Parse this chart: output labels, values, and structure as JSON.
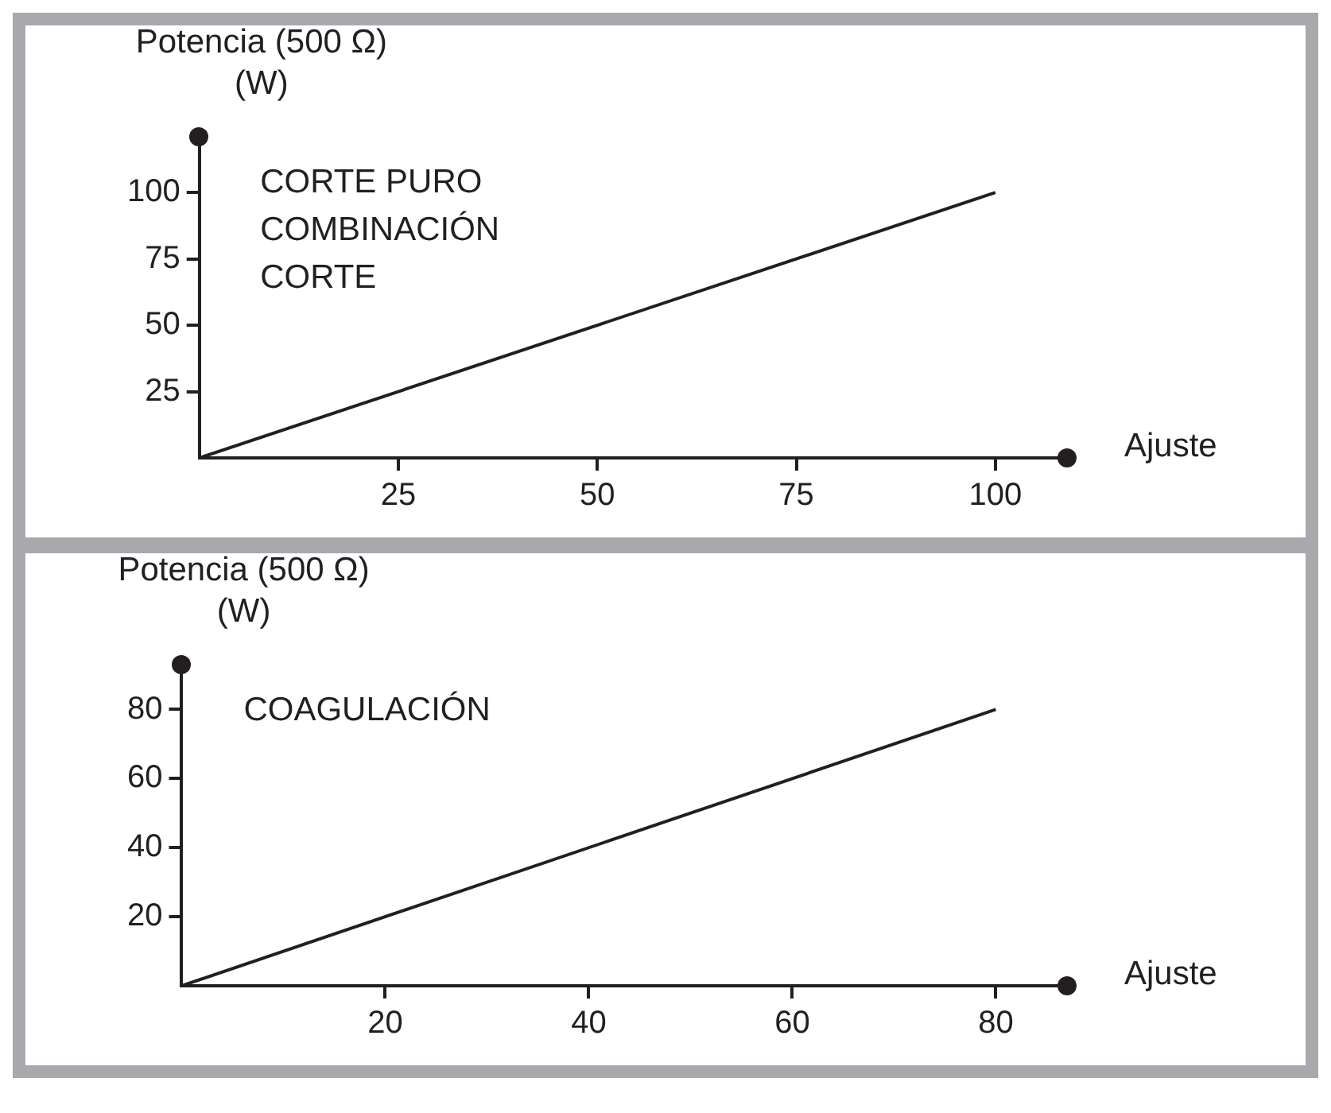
{
  "chart_data": [
    {
      "type": "line",
      "ylabel": "Potencia (500 Ω)\n(W)",
      "xlabel": "Ajuste",
      "annotations": [
        "CORTE PURO\nCOMBINACIÓN\nCORTE"
      ],
      "series": [
        {
          "color": "#231f20",
          "x": [
            0,
            100
          ],
          "values": [
            0,
            100
          ]
        }
      ],
      "xlim": [
        0,
        109
      ],
      "xticks": [
        25,
        50,
        75,
        100
      ],
      "ylim": [
        0,
        121
      ],
      "yticks": [
        25,
        50,
        75,
        100
      ],
      "grid": false,
      "legend": false
    },
    {
      "type": "line",
      "ylabel": "Potencia (500 Ω)\n(W)",
      "xlabel": "Ajuste",
      "annotations": [
        "COAGULACIÓN"
      ],
      "series": [
        {
          "color": "#231f20",
          "x": [
            0,
            80
          ],
          "values": [
            0,
            80
          ]
        }
      ],
      "xlim": [
        0,
        87
      ],
      "xticks": [
        20,
        40,
        60,
        80
      ],
      "ylim": [
        0,
        93
      ],
      "yticks": [
        20,
        40,
        60,
        80
      ],
      "grid": false,
      "legend": false
    }
  ]
}
